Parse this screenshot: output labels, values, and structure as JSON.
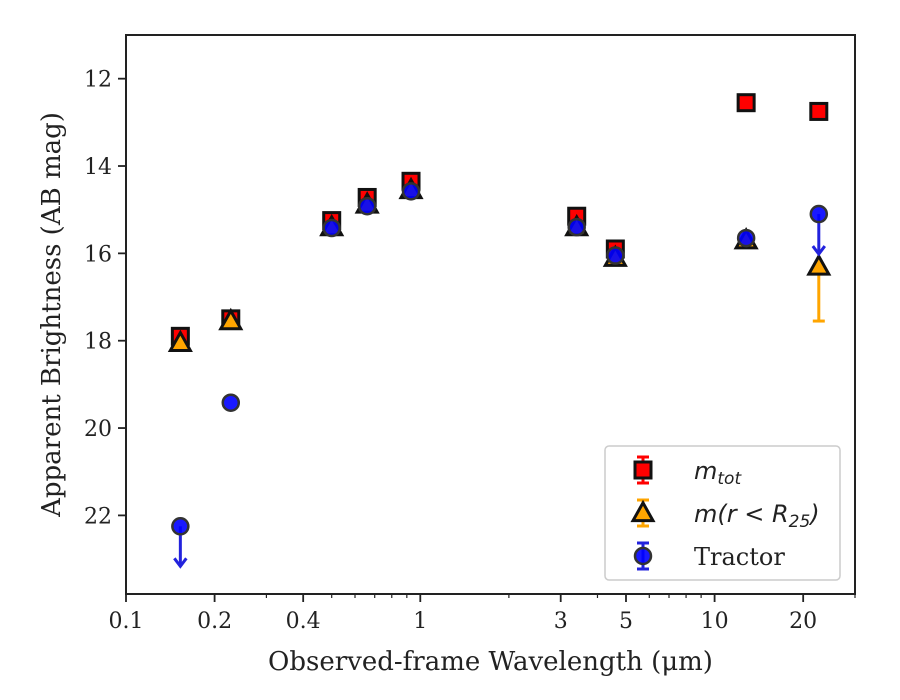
{
  "chart_data": {
    "type": "scatter",
    "title": "",
    "xlabel": "Observed-frame Wavelength (μm)",
    "ylabel": "Apparent Brightness (AB mag)",
    "xscale": "log",
    "xlim": [
      0.1,
      30
    ],
    "ylim": [
      23.8,
      11.0
    ],
    "y_inverted": true,
    "x_ticks": [
      {
        "value": 0.1,
        "label": "0.1"
      },
      {
        "value": 0.2,
        "label": "0.2"
      },
      {
        "value": 0.4,
        "label": "0.4"
      },
      {
        "value": 1,
        "label": "1"
      },
      {
        "value": 3,
        "label": "3"
      },
      {
        "value": 5,
        "label": "5"
      },
      {
        "value": 10,
        "label": "10"
      },
      {
        "value": 20,
        "label": "20"
      }
    ],
    "y_ticks": [
      {
        "value": 12,
        "label": "12"
      },
      {
        "value": 14,
        "label": "14"
      },
      {
        "value": 16,
        "label": "16"
      },
      {
        "value": 18,
        "label": "18"
      },
      {
        "value": 20,
        "label": "20"
      },
      {
        "value": 22,
        "label": "22"
      }
    ],
    "grid": false,
    "legend_position": "lower-right",
    "series": [
      {
        "name": "mtot",
        "name_main": "m",
        "name_sub": "tot",
        "marker": "square",
        "color": "#ff0000",
        "edge_color": "#111111",
        "points": [
          {
            "x": 0.153,
            "y": 17.9
          },
          {
            "x": 0.227,
            "y": 17.5
          },
          {
            "x": 0.5,
            "y": 15.25
          },
          {
            "x": 0.66,
            "y": 14.72
          },
          {
            "x": 0.93,
            "y": 14.35
          },
          {
            "x": 3.4,
            "y": 15.15
          },
          {
            "x": 4.6,
            "y": 15.9
          },
          {
            "x": 12.8,
            "y": 12.55
          },
          {
            "x": 22.6,
            "y": 12.75
          }
        ]
      },
      {
        "name": "m(r<R25)",
        "name_main": "m(r < R",
        "name_sub": "25",
        "name_end": ")",
        "marker": "triangle",
        "color": "#ffa500",
        "edge_color": "#111111",
        "points": [
          {
            "x": 0.153,
            "y": 18.05
          },
          {
            "x": 0.227,
            "y": 17.55
          },
          {
            "x": 0.5,
            "y": 15.4
          },
          {
            "x": 0.66,
            "y": 14.88
          },
          {
            "x": 0.93,
            "y": 14.55
          },
          {
            "x": 3.4,
            "y": 15.4
          },
          {
            "x": 4.6,
            "y": 16.1
          },
          {
            "x": 12.8,
            "y": 15.7
          },
          {
            "x": 22.6,
            "y": 16.3,
            "err_low": 1.25
          }
        ]
      },
      {
        "name": "Tractor",
        "marker": "circle",
        "color": "#0000ff",
        "edge_color": "#333333",
        "points": [
          {
            "x": 0.153,
            "y": 22.25,
            "upper_limit": true
          },
          {
            "x": 0.227,
            "y": 19.42
          },
          {
            "x": 0.5,
            "y": 15.42
          },
          {
            "x": 0.66,
            "y": 14.92
          },
          {
            "x": 0.93,
            "y": 14.58
          },
          {
            "x": 3.4,
            "y": 15.4
          },
          {
            "x": 4.6,
            "y": 16.05
          },
          {
            "x": 12.8,
            "y": 15.65
          },
          {
            "x": 22.6,
            "y": 15.1,
            "upper_limit": true
          }
        ]
      }
    ]
  }
}
